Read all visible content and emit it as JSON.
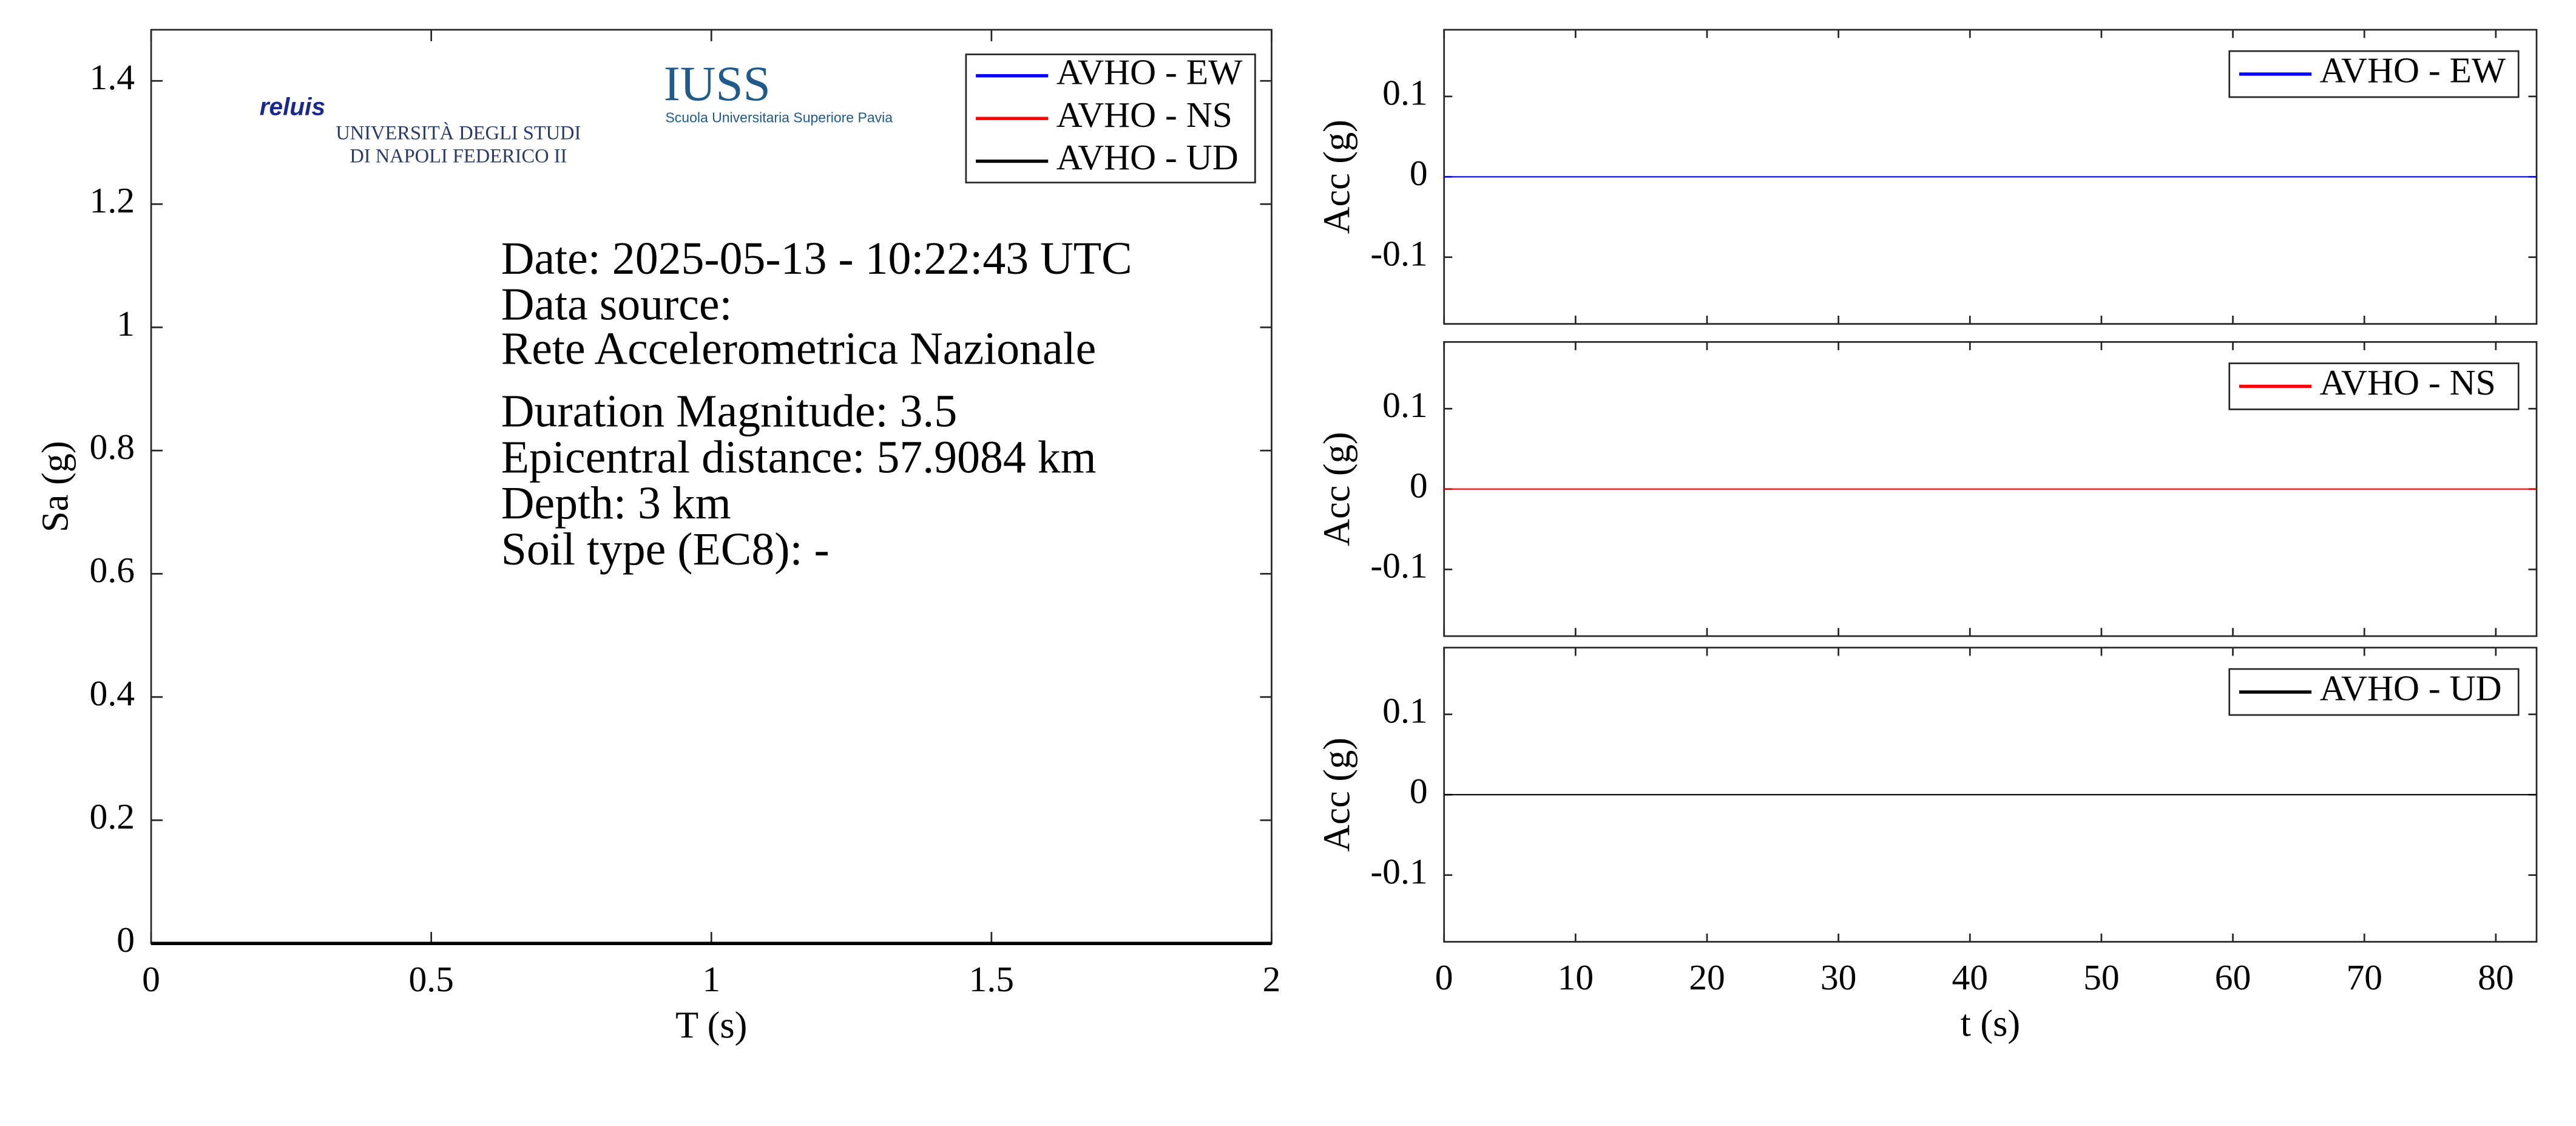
{
  "chart_data": [
    {
      "type": "line",
      "xlabel": "T (s)",
      "ylabel": "Sa (g)",
      "x": [
        0,
        2
      ],
      "series": [
        {
          "name": "AVHO - EW",
          "color": "#0000ff",
          "values": [
            0,
            0
          ]
        },
        {
          "name": "AVHO - NS",
          "color": "#ff0000",
          "values": [
            0,
            0
          ]
        },
        {
          "name": "AVHO - UD",
          "color": "#000000",
          "values": [
            0,
            0
          ]
        }
      ],
      "xlim": [
        0,
        2
      ],
      "xticks": [
        0,
        0.5,
        1,
        1.5,
        2
      ],
      "ylim": [
        0,
        1.483
      ],
      "yticks": [
        0,
        0.2,
        0.4,
        0.6,
        0.8,
        1,
        1.2,
        1.4
      ],
      "legend": "upper right",
      "annotations": [
        "Date: 2025-05-13 - 10:22:43 UTC",
        "Data source:",
        "Rete Accelerometrica Nazionale",
        "Duration Magnitude: 3.5",
        "Epicentral distance: 57.9084 km",
        "Depth: 3 km",
        "Soil type (EC8): -"
      ],
      "logos": [
        "reluis",
        "UNIVERSITÀ DEGLI STUDI",
        "DI NAPOLI FEDERICO II",
        "IUSS",
        "Scuola Universitaria Superiore Pavia"
      ]
    },
    {
      "type": "line",
      "ylabel": "Acc (g)",
      "x": [
        0,
        83.1
      ],
      "series": [
        {
          "name": "AVHO - EW",
          "color": "#0000ff",
          "values": [
            0,
            0
          ]
        }
      ],
      "xlim": [
        0,
        83.1
      ],
      "xticks": [
        0,
        10,
        20,
        30,
        40,
        50,
        60,
        70,
        80
      ],
      "ylim": [
        -0.183,
        0.183
      ],
      "yticks": [
        -0.1,
        0,
        0.1
      ],
      "legend": "upper right"
    },
    {
      "type": "line",
      "ylabel": "Acc (g)",
      "x": [
        0,
        83.1
      ],
      "series": [
        {
          "name": "AVHO - NS",
          "color": "#ff0000",
          "values": [
            0,
            0
          ]
        }
      ],
      "xlim": [
        0,
        83.1
      ],
      "xticks": [
        0,
        10,
        20,
        30,
        40,
        50,
        60,
        70,
        80
      ],
      "ylim": [
        -0.183,
        0.183
      ],
      "yticks": [
        -0.1,
        0,
        0.1
      ],
      "legend": "upper right"
    },
    {
      "type": "line",
      "xlabel": "t (s)",
      "ylabel": "Acc (g)",
      "x": [
        0,
        83.1
      ],
      "series": [
        {
          "name": "AVHO - UD",
          "color": "#000000",
          "values": [
            0,
            0
          ]
        }
      ],
      "xlim": [
        0,
        83.1
      ],
      "xticks": [
        0,
        10,
        20,
        30,
        40,
        50,
        60,
        70,
        80
      ],
      "ylim": [
        -0.183,
        0.183
      ],
      "yticks": [
        -0.1,
        0,
        0.1
      ],
      "legend": "upper right"
    }
  ]
}
